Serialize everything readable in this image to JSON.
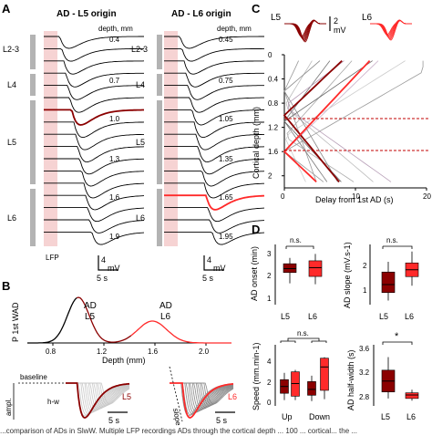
{
  "panel_a": {
    "letter": "A",
    "left_title": "AD - L5 origin",
    "right_title": "AD - L6 origin",
    "depth_header": "depth, mm",
    "left_depths": [
      "0.4",
      "0.7",
      "1.0",
      "1.3",
      "1.6",
      "1.9"
    ],
    "right_depths": [
      "0.45",
      "0.75",
      "1.05",
      "1.35",
      "1.65",
      "1.95"
    ],
    "layers": [
      "L2-3",
      "L4",
      "L5",
      "L6"
    ],
    "lfp_label": "LFP",
    "scale_mv": "4",
    "scale_mv_unit": "mV",
    "scale_s": "5 s",
    "colors": {
      "trace": "#000000",
      "highlight": "#8b0000",
      "highlight_right": "#ff2a2a",
      "shade": "#f6d3d3",
      "layer_bar": "#b3b3b3"
    }
  },
  "panel_b": {
    "letter": "B",
    "ylabel": "P 1st WAD",
    "xlabel": "Depth (mm)",
    "annot_l5_a": "AD",
    "annot_l5_b": "L5",
    "annot_l6_a": "AD",
    "annot_l6_b": "L6",
    "baseline_label": "baseline",
    "ampl_label": "ampl.",
    "hw_label": "h-w",
    "slope_label": "slope",
    "l5_tag": "L5",
    "l6_tag": "L6",
    "scale_s": "5 s",
    "chart_data": {
      "type": "line",
      "x_ticks": [
        "0.8",
        "1.2",
        "1.6",
        "2.0"
      ],
      "xlim": [
        0.6,
        2.2
      ],
      "series": [
        {
          "name": "L5",
          "peak_x": 1.0,
          "peak_y": 1.0,
          "width": 0.12
        },
        {
          "name": "L6",
          "peak_x": 1.58,
          "peak_y": 0.48,
          "width": 0.16
        }
      ]
    }
  },
  "panel_c": {
    "letter": "C",
    "l5_label": "L5",
    "l6_label": "L6",
    "scale_mv": "2",
    "scale_mv_unit": "mV",
    "ylabel": "Cortical depth (mm)",
    "xlabel": "Delay from 1st AD (s)",
    "chart_data": {
      "type": "line",
      "ylim": [
        2.2,
        0.0
      ],
      "xlim": [
        0,
        20
      ],
      "y_ticks": [
        "0",
        "0.4",
        "0.8",
        "1.2",
        "1.6",
        "2"
      ],
      "x_ticks": [
        "0",
        "10",
        "20"
      ],
      "dashed_lines_y": [
        1.0,
        1.4
      ]
    }
  },
  "panel_d": {
    "letter": "D",
    "plots": [
      {
        "ylabel": "AD onset (min)",
        "sig": "n.s.",
        "ticks": [
          "1",
          "2",
          "3"
        ],
        "cats": [
          "L5",
          "L6"
        ]
      },
      {
        "ylabel": "AD slope (mV.s-1)",
        "sig": "n.s.",
        "ticks": [
          "1",
          "2"
        ],
        "cats": [
          "L5",
          "L6"
        ]
      },
      {
        "ylabel": "Speed (mm.min-1)",
        "sig": "n.s.",
        "ticks": [
          "0",
          "2",
          "4"
        ],
        "cats": [
          "Up",
          "Down"
        ]
      },
      {
        "ylabel": "AD half-width (s)",
        "sig": "*",
        "ticks": [
          "2.8",
          "3.2",
          "3.6"
        ],
        "cats": [
          "L5",
          "L6"
        ]
      }
    ],
    "chart_data": [
      {
        "type": "box",
        "name": "AD onset",
        "ylim": [
          0.5,
          3.3
        ],
        "boxes": [
          {
            "cat": "L5",
            "q1": 2.05,
            "median": 2.25,
            "q3": 2.5,
            "min": 1.5,
            "max": 2.8,
            "color": "#8b0000"
          },
          {
            "cat": "L6",
            "q1": 1.85,
            "median": 2.3,
            "q3": 2.65,
            "min": 1.45,
            "max": 3.0,
            "color": "#ff2a2a"
          }
        ]
      },
      {
        "type": "box",
        "name": "AD slope",
        "ylim": [
          0.3,
          2.7
        ],
        "boxes": [
          {
            "cat": "L5",
            "q1": 0.75,
            "median": 1.1,
            "q3": 1.65,
            "min": 0.4,
            "max": 2.1,
            "color": "#8b0000"
          },
          {
            "cat": "L6",
            "q1": 1.45,
            "median": 1.75,
            "q3": 2.05,
            "min": 1.05,
            "max": 2.55,
            "color": "#ff2a2a"
          }
        ]
      },
      {
        "type": "box",
        "name": "Speed",
        "ylim": [
          -0.3,
          5.5
        ],
        "boxes": [
          {
            "cat": "Up",
            "q1": 0.9,
            "median": 1.6,
            "q3": 2.3,
            "min": 0.2,
            "max": 3.0,
            "color": "#8b0000"
          },
          {
            "cat": "Up",
            "q1": 0.6,
            "median": 1.9,
            "q3": 3.1,
            "min": 0.2,
            "max": 3.3,
            "color": "#ff2a2a"
          },
          {
            "cat": "Down",
            "q1": 0.7,
            "median": 1.3,
            "q3": 2.1,
            "min": 0.1,
            "max": 2.7,
            "color": "#8b0000"
          },
          {
            "cat": "Down",
            "q1": 1.2,
            "median": 3.6,
            "q3": 4.5,
            "min": 0.3,
            "max": 4.6,
            "color": "#ff2a2a"
          }
        ]
      },
      {
        "type": "box",
        "name": "AD half-width",
        "ylim": [
          2.65,
          3.95
        ],
        "boxes": [
          {
            "cat": "L5",
            "q1": 2.95,
            "median": 3.2,
            "q3": 3.45,
            "min": 2.8,
            "max": 3.75,
            "color": "#8b0000"
          },
          {
            "cat": "L6",
            "q1": 2.8,
            "median": 2.88,
            "q3": 2.93,
            "min": 2.75,
            "max": 3.0,
            "color": "#ff2a2a"
          }
        ]
      }
    ]
  },
  "caption_fragment": "...comparison of ADs in SlwW. Multiple LFP recordings ADs through the cortical depth ... 100 ... cortical...  the ..."
}
